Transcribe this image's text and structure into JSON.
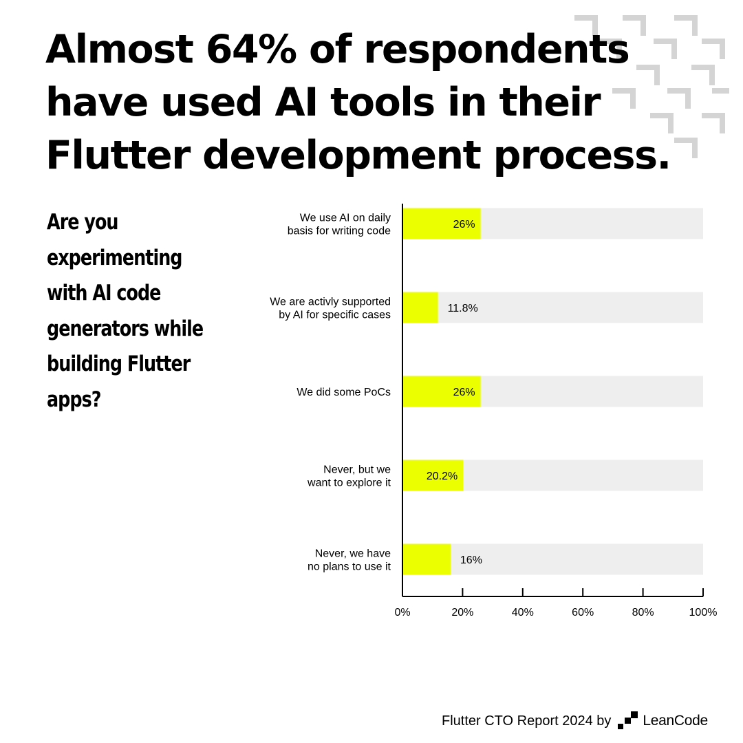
{
  "headline": {
    "lines": [
      "Almost 64% of respondents",
      "have used AI tools in their",
      "Flutter development process."
    ]
  },
  "question": {
    "lines": [
      "Are you",
      "experimenting",
      "with AI code",
      "generators while",
      "building Flutter",
      "apps?"
    ]
  },
  "chart_data": {
    "type": "bar",
    "orientation": "horizontal",
    "categories": [
      [
        "We use AI on daily",
        "basis for writing code"
      ],
      [
        "We are activly supported",
        "by AI for specific cases"
      ],
      [
        "We did some PoCs"
      ],
      [
        "Never, but we",
        "want to explore it"
      ],
      [
        "Never, we have",
        "no plans to use it"
      ]
    ],
    "values": [
      26,
      11.8,
      26,
      20.2,
      16
    ],
    "value_labels": [
      "26%",
      "11.8%",
      "26%",
      "20.2%",
      "16%"
    ],
    "xlim": [
      0,
      100
    ],
    "x_ticks": [
      0,
      20,
      40,
      60,
      80,
      100
    ],
    "x_tick_labels": [
      "0%",
      "20%",
      "40%",
      "60%",
      "80%",
      "100%"
    ],
    "bar_color": "#ecff00",
    "track_color": "#eeeeee",
    "grid": false
  },
  "footer": {
    "text": "Flutter CTO Report 2024 by",
    "brand": "LeanCode"
  },
  "colors": {
    "background": "#ffffff",
    "text": "#000000",
    "accent": "#ecff00",
    "decoration": "#d4d4d4"
  }
}
